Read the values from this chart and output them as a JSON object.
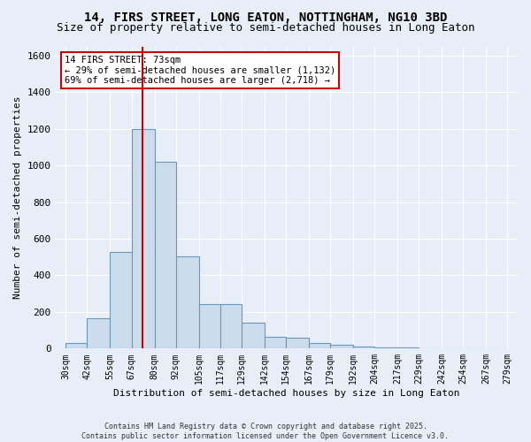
{
  "title1": "14, FIRS STREET, LONG EATON, NOTTINGHAM, NG10 3BD",
  "title2": "Size of property relative to semi-detached houses in Long Eaton",
  "xlabel": "Distribution of semi-detached houses by size in Long Eaton",
  "ylabel": "Number of semi-detached properties",
  "bin_edges": [
    30,
    42,
    55,
    67,
    80,
    92,
    105,
    117,
    129,
    142,
    154,
    167,
    179,
    192,
    204,
    217,
    229,
    242,
    254,
    267,
    279
  ],
  "bar_heights": [
    30,
    165,
    530,
    1200,
    1020,
    505,
    245,
    245,
    140,
    65,
    60,
    30,
    20,
    10,
    5,
    5,
    0,
    0,
    0,
    0
  ],
  "bar_color": "#ccdcec",
  "bar_edge_color": "#6699bb",
  "red_line_x": 73,
  "red_line_color": "#cc0000",
  "annotation_text": "14 FIRS STREET: 73sqm\n← 29% of semi-detached houses are smaller (1,132)\n69% of semi-detached houses are larger (2,718) →",
  "annotation_box_color": "#ffffff",
  "annotation_box_edge": "#cc0000",
  "ylim": [
    0,
    1650
  ],
  "yticks": [
    0,
    200,
    400,
    600,
    800,
    1000,
    1200,
    1400,
    1600
  ],
  "xlim_left": 24,
  "xlim_right": 285,
  "background_color": "#e8eef8",
  "footer1": "Contains HM Land Registry data © Crown copyright and database right 2025.",
  "footer2": "Contains public sector information licensed under the Open Government Licence v3.0.",
  "title_fontsize": 10,
  "subtitle_fontsize": 9,
  "tick_fontsize": 7,
  "ylabel_fontsize": 8,
  "xlabel_fontsize": 8
}
